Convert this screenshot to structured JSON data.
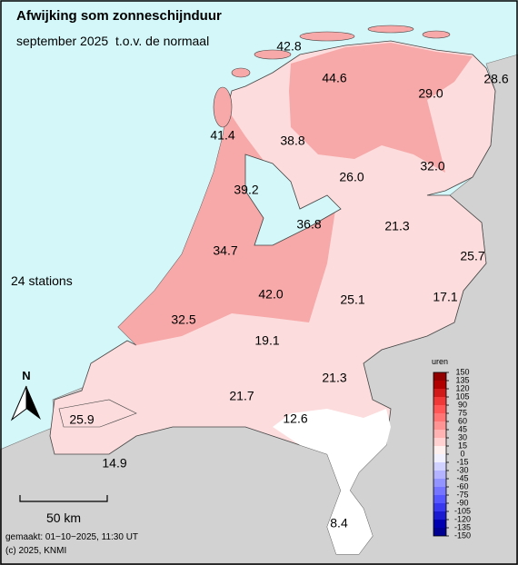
{
  "title": "Afwijking som zonneschijnduur",
  "subtitle": "september 2025  t.o.v. de normaal",
  "stations_count": "24 stations",
  "station_values": [
    "42.8",
    "44.6",
    "28.6",
    "29.0",
    "41.4",
    "38.8",
    "26.0",
    "32.0",
    "39.2",
    "36.8",
    "21.3",
    "25.7",
    "34.7",
    "42.0",
    "25.1",
    "17.1",
    "32.5",
    "19.1",
    "21.3",
    "21.7",
    "12.6",
    "25.9",
    "14.9",
    "8.4"
  ],
  "north": "N",
  "scale": "50 km",
  "made": "gemaakt: 01−10−2025, 11:30 UT",
  "copyright": "(c) 2025, KNMI",
  "legend": {
    "title": "uren",
    "ticks": [
      150,
      135,
      120,
      105,
      90,
      75,
      60,
      45,
      30,
      15,
      0,
      -15,
      -30,
      -45,
      -60,
      -75,
      -90,
      -105,
      -120,
      -135,
      -150
    ]
  }
}
